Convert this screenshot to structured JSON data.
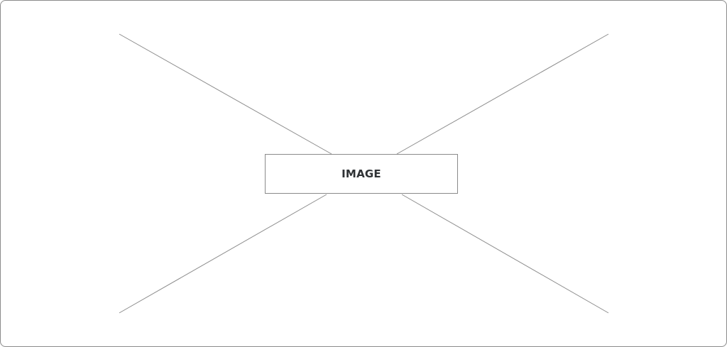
{
  "placeholder": {
    "label": "IMAGE",
    "icon": "image-placeholder-cross-icon",
    "colors": {
      "border": "#8a8a8a",
      "line": "#8c8c8c",
      "label_text": "#2f3235",
      "background": "#ffffff"
    }
  }
}
